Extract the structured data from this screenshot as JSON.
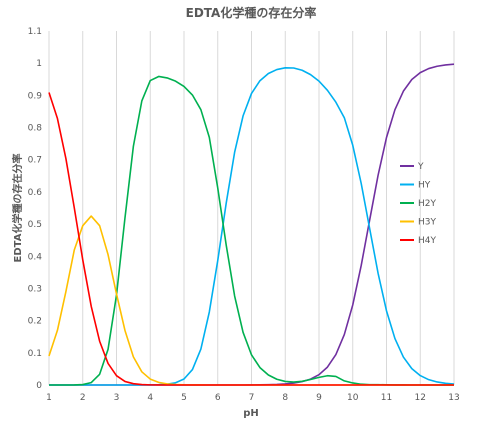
{
  "chart_data": {
    "type": "line",
    "title": "EDTA化学種の存在分率",
    "xlabel": "pH",
    "ylabel": "EDTA化学種の存在分率",
    "xlim": [
      1,
      13
    ],
    "ylim": [
      0,
      1.1
    ],
    "xticks": [
      "1",
      "2",
      "3",
      "4",
      "5",
      "6",
      "7",
      "8",
      "9",
      "10",
      "11",
      "12",
      "13"
    ],
    "yticks": [
      "0",
      "0.1",
      "0.2",
      "0.3",
      "0.4",
      "0.5",
      "0.6",
      "0.7",
      "0.8",
      "0.9",
      "1",
      "1.1"
    ],
    "grid": "vertical",
    "legend_position": "right",
    "x": [
      1.0,
      1.25,
      1.5,
      1.75,
      2.0,
      2.25,
      2.5,
      2.75,
      3.0,
      3.25,
      3.5,
      3.75,
      4.0,
      4.25,
      4.5,
      4.75,
      5.0,
      5.25,
      5.5,
      5.75,
      6.0,
      6.25,
      6.5,
      6.75,
      7.0,
      7.25,
      7.5,
      7.75,
      8.0,
      8.25,
      8.5,
      8.75,
      9.0,
      9.25,
      9.5,
      9.75,
      10.0,
      10.25,
      10.5,
      10.75,
      11.0,
      11.25,
      11.5,
      11.75,
      12.0,
      12.25,
      12.5,
      12.75,
      13.0
    ],
    "series": [
      {
        "name": "Y",
        "color": "#7030a0",
        "values": [
          0,
          0,
          0,
          0,
          0,
          0,
          0,
          0,
          0,
          0,
          0,
          0,
          0,
          0,
          0,
          0,
          0,
          0,
          0,
          0,
          0,
          0,
          0,
          0,
          0.0003,
          0.0006,
          0.0011,
          0.0019,
          0.0034,
          0.0059,
          0.0105,
          0.0184,
          0.032,
          0.0556,
          0.0947,
          0.1567,
          0.2488,
          0.3711,
          0.5121,
          0.6514,
          0.7691,
          0.8555,
          0.9131,
          0.9492,
          0.9707,
          0.9833,
          0.9905,
          0.9946,
          0.997
        ]
      },
      {
        "name": "HY",
        "color": "#00b0f0",
        "values": [
          0,
          0,
          0,
          0,
          0,
          0,
          0,
          0,
          0,
          0,
          0,
          0.0001,
          0.0003,
          0.0009,
          0.0025,
          0.0069,
          0.0187,
          0.0479,
          0.1118,
          0.2268,
          0.3868,
          0.5647,
          0.7233,
          0.8362,
          0.906,
          0.9455,
          0.9679,
          0.9802,
          0.9856,
          0.985,
          0.978,
          0.9645,
          0.9443,
          0.9156,
          0.8787,
          0.8306,
          0.7449,
          0.6265,
          0.4868,
          0.3476,
          0.2304,
          0.1443,
          0.0868,
          0.0508,
          0.0293,
          0.0166,
          0.0094,
          0.0053,
          0.003
        ]
      },
      {
        "name": "H2Y",
        "color": "#00b050",
        "values": [
          0,
          0,
          0,
          0.0001,
          0.0013,
          0.0074,
          0.0333,
          0.1109,
          0.2796,
          0.5183,
          0.7419,
          0.8826,
          0.946,
          0.9587,
          0.9542,
          0.9441,
          0.9276,
          0.9011,
          0.8555,
          0.7696,
          0.6121,
          0.435,
          0.2765,
          0.1637,
          0.0937,
          0.054,
          0.031,
          0.0179,
          0.011,
          0.0091,
          0.0115,
          0.0171,
          0.0237,
          0.0288,
          0.0266,
          0.0127,
          0.0063,
          0.0024,
          0.0011,
          0.001,
          0.0005,
          0.0002,
          0.0001,
          0,
          0,
          0,
          0,
          0,
          0
        ]
      },
      {
        "name": "H3Y",
        "color": "#ffc000",
        "values": [
          0.09,
          0.17,
          0.29,
          0.42,
          0.495,
          0.525,
          0.495,
          0.405,
          0.283,
          0.1698,
          0.0873,
          0.041,
          0.0184,
          0.0081,
          0.0035,
          0.0015,
          0.0006,
          0.0003,
          0.0001,
          0,
          0,
          0,
          0,
          0,
          0,
          0,
          0,
          0,
          0,
          0,
          0,
          0,
          0,
          0,
          0,
          0,
          0,
          0,
          0,
          0,
          0,
          0,
          0,
          0,
          0,
          0,
          0,
          0,
          0
        ]
      },
      {
        "name": "H4Y",
        "color": "#ff0000",
        "values": [
          0.909,
          0.828,
          0.704,
          0.55,
          0.389,
          0.245,
          0.136,
          0.067,
          0.029,
          0.011,
          0.004,
          0.0013,
          0.0004,
          0.0001,
          0,
          0,
          0,
          0,
          0,
          0,
          0,
          0,
          0,
          0,
          0,
          0,
          0,
          0,
          0,
          0,
          0,
          0,
          0,
          0,
          0,
          0,
          0,
          0,
          0,
          0,
          0,
          0,
          0,
          0,
          0,
          0,
          0,
          0,
          0
        ]
      }
    ]
  }
}
